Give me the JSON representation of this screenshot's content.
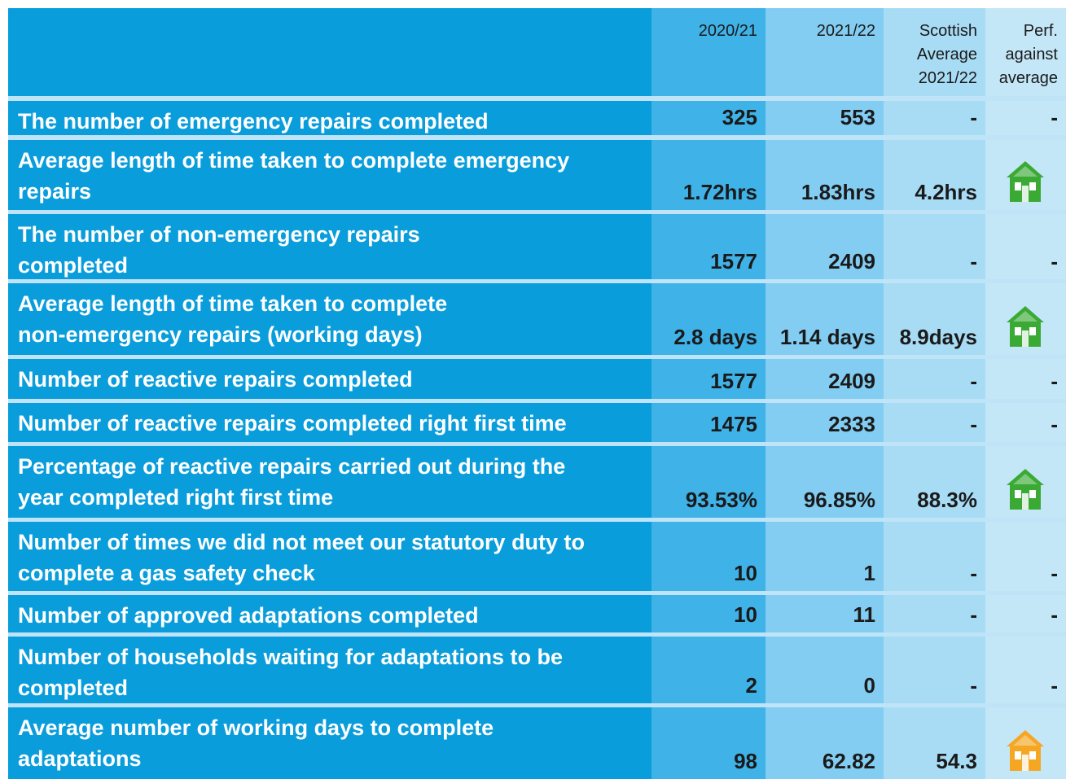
{
  "header": {
    "cells": [
      [
        "2020/21"
      ],
      [
        "2021/22"
      ],
      [
        "Scottish",
        "Average",
        "2021/22"
      ],
      [
        "Perf.",
        "against",
        "average"
      ]
    ]
  },
  "table": {
    "rows": [
      {
        "label": [
          "The number of emergency repairs completed"
        ],
        "cells": [
          "325",
          "553",
          "-",
          "-"
        ]
      },
      {
        "label": [
          "Average length of time taken to complete emergency",
          "repairs"
        ],
        "cells": [
          "1.72hrs",
          "1.83hrs",
          "4.2hrs"
        ],
        "icon": "#3aaa35"
      },
      {
        "label": [
          "The number of non-emergency repairs",
          "completed"
        ],
        "cells": [
          "1577",
          "2409",
          "-",
          "-"
        ]
      },
      {
        "label": [
          "Average length of time taken to complete",
          "non-emergency repairs (working days)"
        ],
        "cells": [
          "2.8 days",
          "1.14 days",
          "8.9days"
        ],
        "icon": "#3aaa35"
      },
      {
        "label": [
          "Number of reactive repairs completed"
        ],
        "cells": [
          "1577",
          "2409",
          "-",
          "-"
        ]
      },
      {
        "label": [
          "Number of reactive repairs completed right first time"
        ],
        "cells": [
          "1475",
          "2333",
          "-",
          "-"
        ]
      },
      {
        "label": [
          "Percentage of reactive repairs carried out during the",
          "year completed right first time"
        ],
        "cells": [
          "93.53%",
          "96.85%",
          "88.3%"
        ],
        "icon": "#3aaa35"
      },
      {
        "label": [
          "Number of times we did not meet our statutory duty to",
          "complete a gas safety check"
        ],
        "cells": [
          "10",
          "1",
          "-",
          "-"
        ]
      },
      {
        "label": [
          "Number of approved adaptations completed"
        ],
        "cells": [
          "10",
          "11",
          "-",
          "-"
        ]
      },
      {
        "label": [
          "Number of households waiting for adaptations to be",
          "completed"
        ],
        "cells": [
          "2",
          "0",
          "-",
          "-"
        ]
      },
      {
        "label": [
          "Average number of working days to complete",
          "adaptations"
        ],
        "cells": [
          "98",
          "62.82",
          "54.3"
        ],
        "icon": "#f5a623"
      }
    ]
  }
}
